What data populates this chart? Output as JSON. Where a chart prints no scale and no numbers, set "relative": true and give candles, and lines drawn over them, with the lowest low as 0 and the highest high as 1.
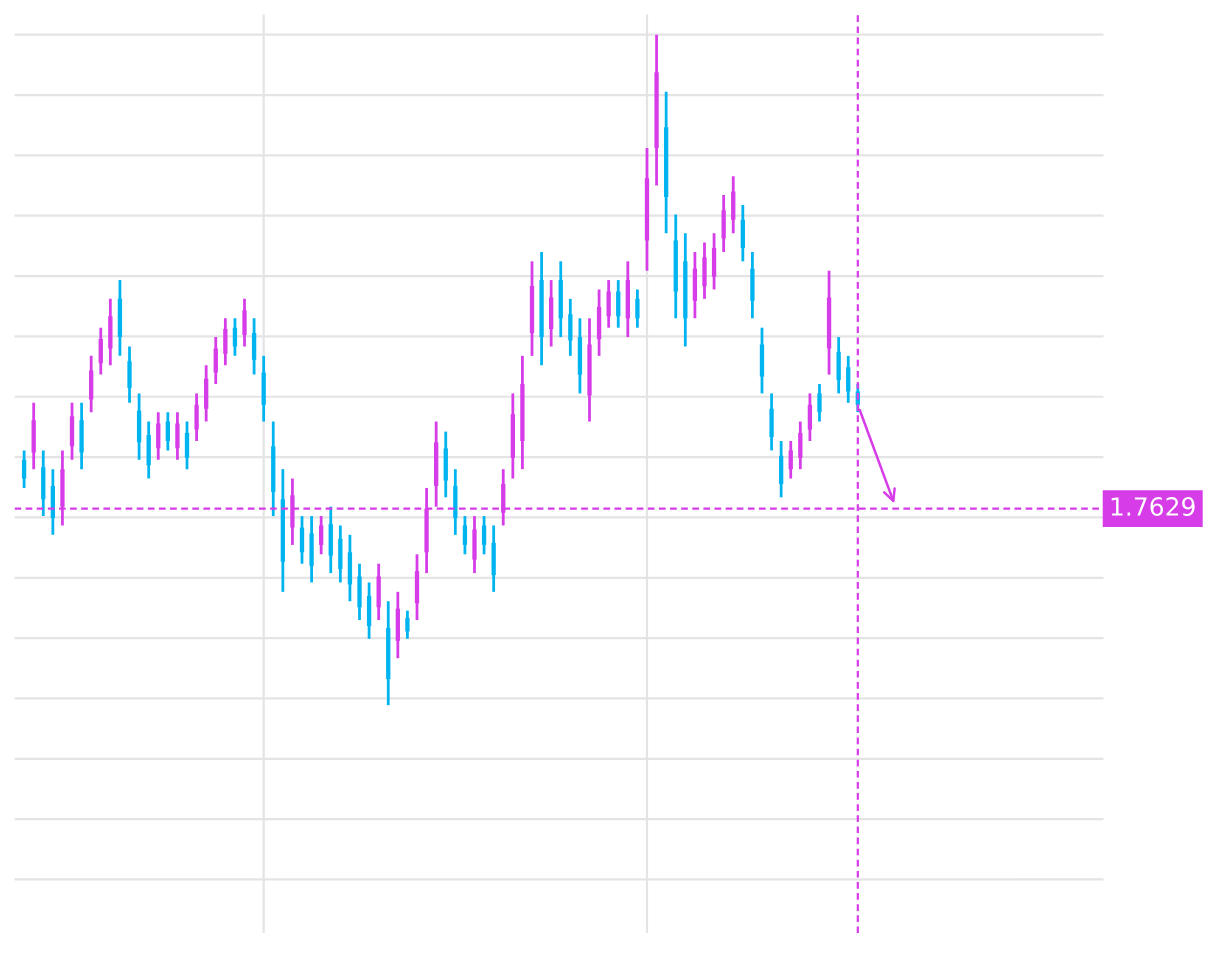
{
  "chart_data": {
    "type": "candlestick",
    "relative": true,
    "grid": true,
    "categories": [
      null,
      null,
      null,
      null,
      null,
      null,
      null,
      null,
      null,
      null,
      null,
      null,
      null,
      null,
      null,
      null,
      null,
      null,
      null,
      null,
      null,
      null,
      null,
      null,
      null,
      null,
      null,
      null,
      null,
      null,
      null,
      null,
      null,
      null,
      null,
      null,
      null,
      null,
      null,
      null,
      null,
      null,
      null,
      null,
      null,
      null,
      null,
      null,
      null,
      null,
      null,
      null,
      null,
      null,
      null,
      null,
      null,
      null,
      null,
      null,
      null,
      null,
      null,
      null,
      null,
      null,
      null,
      null,
      null,
      null,
      null,
      null,
      null,
      null,
      null,
      null,
      null,
      null,
      null,
      null,
      null,
      null,
      null,
      null,
      null,
      null,
      null,
      null
    ],
    "ohlc": [
      [
        0.366,
        0.38,
        0.324,
        0.338
      ],
      [
        0.377,
        0.451,
        0.352,
        0.425
      ],
      [
        0.355,
        0.38,
        0.282,
        0.307
      ],
      [
        0.327,
        0.352,
        0.254,
        0.279
      ],
      [
        0.296,
        0.38,
        0.268,
        0.352
      ],
      [
        0.386,
        0.451,
        0.366,
        0.431
      ],
      [
        0.425,
        0.451,
        0.352,
        0.377
      ],
      [
        0.456,
        0.521,
        0.437,
        0.499
      ],
      [
        0.51,
        0.563,
        0.493,
        0.546
      ],
      [
        0.532,
        0.606,
        0.507,
        0.58
      ],
      [
        0.606,
        0.634,
        0.521,
        0.549
      ],
      [
        0.513,
        0.535,
        0.451,
        0.473
      ],
      [
        0.439,
        0.465,
        0.366,
        0.392
      ],
      [
        0.403,
        0.423,
        0.338,
        0.358
      ],
      [
        0.383,
        0.437,
        0.366,
        0.42
      ],
      [
        0.423,
        0.437,
        0.38,
        0.394
      ],
      [
        0.383,
        0.437,
        0.366,
        0.42
      ],
      [
        0.406,
        0.423,
        0.352,
        0.369
      ],
      [
        0.411,
        0.465,
        0.394,
        0.448
      ],
      [
        0.442,
        0.507,
        0.423,
        0.487
      ],
      [
        0.496,
        0.549,
        0.479,
        0.532
      ],
      [
        0.524,
        0.577,
        0.507,
        0.561
      ],
      [
        0.563,
        0.577,
        0.521,
        0.535
      ],
      [
        0.552,
        0.606,
        0.535,
        0.589
      ],
      [
        0.555,
        0.577,
        0.493,
        0.515
      ],
      [
        0.496,
        0.521,
        0.423,
        0.448
      ],
      [
        0.386,
        0.423,
        0.282,
        0.318
      ],
      [
        0.307,
        0.352,
        0.169,
        0.214
      ],
      [
        0.265,
        0.338,
        0.239,
        0.313
      ],
      [
        0.265,
        0.282,
        0.211,
        0.228
      ],
      [
        0.256,
        0.282,
        0.183,
        0.208
      ],
      [
        0.239,
        0.282,
        0.225,
        0.268
      ],
      [
        0.27,
        0.296,
        0.197,
        0.223
      ],
      [
        0.248,
        0.268,
        0.183,
        0.203
      ],
      [
        0.228,
        0.254,
        0.155,
        0.18
      ],
      [
        0.192,
        0.211,
        0.127,
        0.146
      ],
      [
        0.163,
        0.183,
        0.099,
        0.118
      ],
      [
        0.146,
        0.211,
        0.127,
        0.192
      ],
      [
        0.115,
        0.155,
        0.0,
        0.039
      ],
      [
        0.096,
        0.169,
        0.07,
        0.144
      ],
      [
        0.13,
        0.141,
        0.099,
        0.11
      ],
      [
        0.152,
        0.225,
        0.127,
        0.2
      ],
      [
        0.228,
        0.324,
        0.197,
        0.293
      ],
      [
        0.327,
        0.423,
        0.296,
        0.392
      ],
      [
        0.383,
        0.408,
        0.31,
        0.335
      ],
      [
        0.327,
        0.352,
        0.254,
        0.279
      ],
      [
        0.268,
        0.282,
        0.225,
        0.239
      ],
      [
        0.217,
        0.282,
        0.197,
        0.262
      ],
      [
        0.268,
        0.282,
        0.225,
        0.239
      ],
      [
        0.242,
        0.268,
        0.169,
        0.194
      ],
      [
        0.287,
        0.352,
        0.268,
        0.33
      ],
      [
        0.369,
        0.465,
        0.338,
        0.434
      ],
      [
        0.394,
        0.521,
        0.352,
        0.479
      ],
      [
        0.555,
        0.662,
        0.521,
        0.625
      ],
      [
        0.634,
        0.676,
        0.507,
        0.549
      ],
      [
        0.561,
        0.634,
        0.535,
        0.608
      ],
      [
        0.634,
        0.662,
        0.549,
        0.577
      ],
      [
        0.583,
        0.606,
        0.521,
        0.544
      ],
      [
        0.549,
        0.577,
        0.465,
        0.493
      ],
      [
        0.462,
        0.577,
        0.423,
        0.538
      ],
      [
        0.546,
        0.62,
        0.521,
        0.594
      ],
      [
        0.58,
        0.634,
        0.563,
        0.617
      ],
      [
        0.617,
        0.634,
        0.563,
        0.58
      ],
      [
        0.577,
        0.662,
        0.549,
        0.634
      ],
      [
        0.606,
        0.62,
        0.563,
        0.577
      ],
      [
        0.693,
        0.831,
        0.648,
        0.786
      ],
      [
        0.831,
        1.0,
        0.775,
        0.944
      ],
      [
        0.862,
        0.915,
        0.704,
        0.758
      ],
      [
        0.693,
        0.732,
        0.577,
        0.617
      ],
      [
        0.662,
        0.704,
        0.535,
        0.577
      ],
      [
        0.603,
        0.676,
        0.577,
        0.651
      ],
      [
        0.625,
        0.69,
        0.606,
        0.668
      ],
      [
        0.639,
        0.704,
        0.62,
        0.682
      ],
      [
        0.696,
        0.761,
        0.676,
        0.738
      ],
      [
        0.724,
        0.789,
        0.704,
        0.766
      ],
      [
        0.724,
        0.746,
        0.662,
        0.682
      ],
      [
        0.651,
        0.676,
        0.577,
        0.603
      ],
      [
        0.538,
        0.563,
        0.465,
        0.49
      ],
      [
        0.442,
        0.465,
        0.38,
        0.4
      ],
      [
        0.372,
        0.394,
        0.31,
        0.33
      ],
      [
        0.352,
        0.394,
        0.338,
        0.38
      ],
      [
        0.369,
        0.423,
        0.352,
        0.406
      ],
      [
        0.411,
        0.465,
        0.394,
        0.448
      ],
      [
        0.465,
        0.479,
        0.423,
        0.437
      ],
      [
        0.532,
        0.648,
        0.493,
        0.608
      ],
      [
        0.527,
        0.549,
        0.465,
        0.485
      ],
      [
        0.504,
        0.521,
        0.451,
        0.468
      ],
      [
        0.468,
        0.479,
        0.437,
        0.448
      ]
    ],
    "colors": [
      "#00b4f0",
      "#d63ce8",
      "#00b4f0",
      "#00b4f0",
      "#d63ce8",
      "#d63ce8",
      "#00b4f0",
      "#d63ce8",
      "#d63ce8",
      "#d63ce8",
      "#00b4f0",
      "#00b4f0",
      "#00b4f0",
      "#00b4f0",
      "#d63ce8",
      "#00b4f0",
      "#d63ce8",
      "#00b4f0",
      "#d63ce8",
      "#d63ce8",
      "#d63ce8",
      "#d63ce8",
      "#00b4f0",
      "#d63ce8",
      "#00b4f0",
      "#00b4f0",
      "#00b4f0",
      "#00b4f0",
      "#d63ce8",
      "#00b4f0",
      "#00b4f0",
      "#d63ce8",
      "#00b4f0",
      "#00b4f0",
      "#00b4f0",
      "#00b4f0",
      "#00b4f0",
      "#d63ce8",
      "#00b4f0",
      "#d63ce8",
      "#00b4f0",
      "#d63ce8",
      "#d63ce8",
      "#d63ce8",
      "#00b4f0",
      "#00b4f0",
      "#00b4f0",
      "#d63ce8",
      "#00b4f0",
      "#00b4f0",
      "#d63ce8",
      "#d63ce8",
      "#d63ce8",
      "#d63ce8",
      "#00b4f0",
      "#d63ce8",
      "#00b4f0",
      "#00b4f0",
      "#00b4f0",
      "#d63ce8",
      "#d63ce8",
      "#d63ce8",
      "#00b4f0",
      "#d63ce8",
      "#00b4f0",
      "#d63ce8",
      "#d63ce8",
      "#00b4f0",
      "#00b4f0",
      "#00b4f0",
      "#d63ce8",
      "#d63ce8",
      "#d63ce8",
      "#d63ce8",
      "#d63ce8",
      "#00b4f0",
      "#00b4f0",
      "#00b4f0",
      "#00b4f0",
      "#00b4f0",
      "#d63ce8",
      "#d63ce8",
      "#d63ce8",
      "#00b4f0",
      "#d63ce8",
      "#00b4f0",
      "#00b4f0",
      "#00b4f0"
    ],
    "ref_lines": [
      {
        "axis": "y",
        "value": 0.293,
        "color": "#d63ce8",
        "line_style": "dashed"
      }
    ],
    "annotations": [
      "1.7629"
    ]
  }
}
